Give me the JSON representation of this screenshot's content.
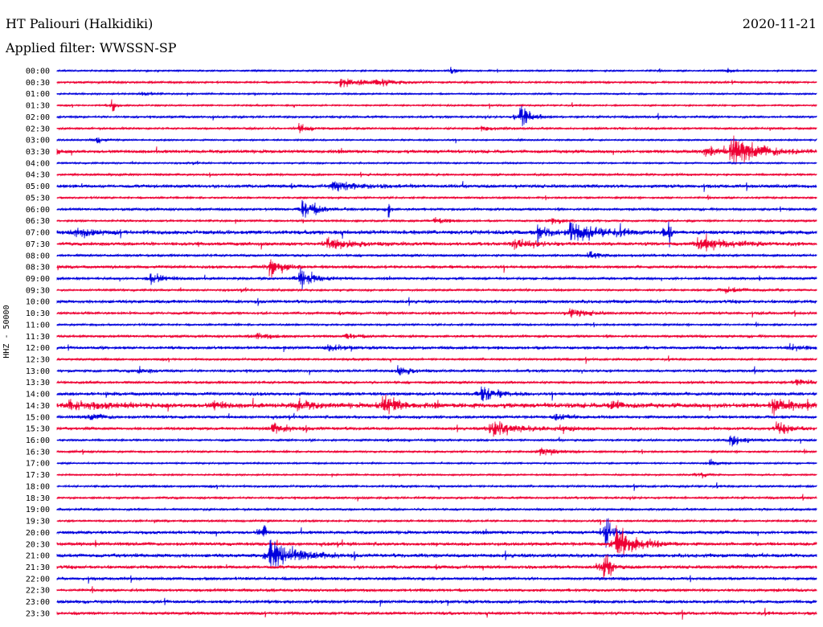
{
  "header": {
    "station": "HT Paliouri (Halkidiki)",
    "date": "2020-11-21",
    "filter": "Applied filter: WWSSN-SP"
  },
  "y_axis_label": "HHZ - 50000",
  "colors": {
    "even_trace": "#0000dd",
    "odd_trace": "#ee0033",
    "text": "#000000",
    "background": "#ffffff"
  },
  "chart_data": {
    "type": "line",
    "title": "",
    "ylabel": "HHZ - 50000",
    "row_labels": [
      "00:00",
      "00:30",
      "01:00",
      "01:30",
      "02:00",
      "02:30",
      "03:00",
      "03:30",
      "04:00",
      "04:30",
      "05:00",
      "05:30",
      "06:00",
      "06:30",
      "07:00",
      "07:30",
      "08:00",
      "08:30",
      "09:00",
      "09:30",
      "10:00",
      "10:30",
      "11:00",
      "11:30",
      "12:00",
      "12:30",
      "13:00",
      "13:30",
      "14:00",
      "14:30",
      "15:00",
      "15:30",
      "16:00",
      "16:30",
      "17:00",
      "17:30",
      "18:00",
      "18:30",
      "19:00",
      "19:30",
      "20:00",
      "20:30",
      "21:00",
      "21:30",
      "22:00",
      "22:30",
      "23:00",
      "23:30"
    ],
    "trace_minutes": 30,
    "noise": [
      0.8,
      1.0,
      0.8,
      0.8,
      1.0,
      1.0,
      0.8,
      1.6,
      0.8,
      1.0,
      1.6,
      1.0,
      1.2,
      1.0,
      2.0,
      1.6,
      1.2,
      1.4,
      1.2,
      1.0,
      1.6,
      1.2,
      1.0,
      1.2,
      1.4,
      1.0,
      1.2,
      1.2,
      1.6,
      2.4,
      1.4,
      1.4,
      1.0,
      1.0,
      0.8,
      0.8,
      1.0,
      1.0,
      1.0,
      1.0,
      1.6,
      1.6,
      1.8,
      1.6,
      1.4,
      1.4,
      1.6,
      1.4
    ],
    "events": [
      {
        "row": 0,
        "minute": 15.6,
        "amplitude": 3,
        "duration": 0.3
      },
      {
        "row": 0,
        "minute": 26.5,
        "amplitude": 3,
        "duration": 0.3
      },
      {
        "row": 1,
        "minute": 11.2,
        "amplitude": 4,
        "duration": 1.5
      },
      {
        "row": 1,
        "minute": 12.7,
        "amplitude": 4,
        "duration": 0.8
      },
      {
        "row": 2,
        "minute": 3.4,
        "amplitude": 2,
        "duration": 0.5
      },
      {
        "row": 3,
        "minute": 2.2,
        "amplitude": 6,
        "duration": 0.2
      },
      {
        "row": 4,
        "minute": 18.3,
        "amplitude": 12,
        "duration": 0.6
      },
      {
        "row": 5,
        "minute": 9.6,
        "amplitude": 4,
        "duration": 0.6
      },
      {
        "row": 5,
        "minute": 16.8,
        "amplitude": 2,
        "duration": 1.0
      },
      {
        "row": 6,
        "minute": 1.6,
        "amplitude": 3,
        "duration": 0.4
      },
      {
        "row": 7,
        "minute": 0.0,
        "amplitude": 5,
        "duration": 0.15
      },
      {
        "row": 7,
        "minute": 26.6,
        "amplitude": 12,
        "duration": 1.8
      },
      {
        "row": 7,
        "minute": 25.6,
        "amplitude": 3,
        "duration": 1.0
      },
      {
        "row": 10,
        "minute": 10.9,
        "amplitude": 4,
        "duration": 1.6
      },
      {
        "row": 12,
        "minute": 9.7,
        "amplitude": 9,
        "duration": 0.9
      },
      {
        "row": 12,
        "minute": 13.1,
        "amplitude": 8,
        "duration": 0.1
      },
      {
        "row": 13,
        "minute": 14.9,
        "amplitude": 3,
        "duration": 0.6
      },
      {
        "row": 13,
        "minute": 19.6,
        "amplitude": 3,
        "duration": 0.6
      },
      {
        "row": 14,
        "minute": 0.8,
        "amplitude": 5,
        "duration": 0.8
      },
      {
        "row": 14,
        "minute": 19.0,
        "amplitude": 4,
        "duration": 0.8
      },
      {
        "row": 14,
        "minute": 20.3,
        "amplitude": 8,
        "duration": 1.8
      },
      {
        "row": 14,
        "minute": 24.2,
        "amplitude": 12,
        "duration": 0.1
      },
      {
        "row": 15,
        "minute": 10.7,
        "amplitude": 5,
        "duration": 1.5
      },
      {
        "row": 15,
        "minute": 18.0,
        "amplitude": 4,
        "duration": 1.2
      },
      {
        "row": 15,
        "minute": 25.3,
        "amplitude": 5,
        "duration": 2.0
      },
      {
        "row": 16,
        "minute": 21.0,
        "amplitude": 3,
        "duration": 0.8
      },
      {
        "row": 17,
        "minute": 8.4,
        "amplitude": 10,
        "duration": 0.7
      },
      {
        "row": 18,
        "minute": 3.7,
        "amplitude": 6,
        "duration": 0.8
      },
      {
        "row": 18,
        "minute": 9.6,
        "amplitude": 7,
        "duration": 1.0
      },
      {
        "row": 19,
        "minute": 26.4,
        "amplitude": 3,
        "duration": 1.0
      },
      {
        "row": 21,
        "minute": 20.3,
        "amplitude": 4,
        "duration": 1.0
      },
      {
        "row": 23,
        "minute": 7.9,
        "amplitude": 3,
        "duration": 0.8
      },
      {
        "row": 23,
        "minute": 11.4,
        "amplitude": 3,
        "duration": 0.6
      },
      {
        "row": 24,
        "minute": 10.7,
        "amplitude": 3,
        "duration": 0.8
      },
      {
        "row": 24,
        "minute": 29.0,
        "amplitude": 3,
        "duration": 0.8
      },
      {
        "row": 26,
        "minute": 3.2,
        "amplitude": 3,
        "duration": 0.6
      },
      {
        "row": 26,
        "minute": 13.5,
        "amplitude": 4,
        "duration": 0.8
      },
      {
        "row": 27,
        "minute": 29.2,
        "amplitude": 3,
        "duration": 0.8
      },
      {
        "row": 28,
        "minute": 16.8,
        "amplitude": 8,
        "duration": 0.8
      },
      {
        "row": 29,
        "minute": 0.5,
        "amplitude": 4,
        "duration": 1.8
      },
      {
        "row": 29,
        "minute": 6.2,
        "amplitude": 4,
        "duration": 0.5
      },
      {
        "row": 29,
        "minute": 9.5,
        "amplitude": 5,
        "duration": 0.8
      },
      {
        "row": 29,
        "minute": 12.9,
        "amplitude": 8,
        "duration": 1.0
      },
      {
        "row": 29,
        "minute": 21.9,
        "amplitude": 5,
        "duration": 0.6
      },
      {
        "row": 29,
        "minute": 28.3,
        "amplitude": 6,
        "duration": 1.0
      },
      {
        "row": 30,
        "minute": 1.3,
        "amplitude": 3,
        "duration": 0.8
      },
      {
        "row": 30,
        "minute": 19.7,
        "amplitude": 3,
        "duration": 0.8
      },
      {
        "row": 31,
        "minute": 8.5,
        "amplitude": 4,
        "duration": 1.2
      },
      {
        "row": 31,
        "minute": 17.1,
        "amplitude": 8,
        "duration": 1.4
      },
      {
        "row": 31,
        "minute": 19.9,
        "amplitude": 3,
        "duration": 0.8
      },
      {
        "row": 31,
        "minute": 28.4,
        "amplitude": 4,
        "duration": 1.2
      },
      {
        "row": 32,
        "minute": 26.6,
        "amplitude": 6,
        "duration": 0.8
      },
      {
        "row": 33,
        "minute": 19.1,
        "amplitude": 4,
        "duration": 0.8
      },
      {
        "row": 34,
        "minute": 25.8,
        "amplitude": 3,
        "duration": 0.5
      },
      {
        "row": 35,
        "minute": 25.4,
        "amplitude": 3,
        "duration": 0.4
      },
      {
        "row": 40,
        "minute": 8.2,
        "amplitude": 14,
        "duration": 0.1
      },
      {
        "row": 40,
        "minute": 21.7,
        "amplitude": 18,
        "duration": 0.3
      },
      {
        "row": 41,
        "minute": 22.1,
        "amplitude": 14,
        "duration": 1.2
      },
      {
        "row": 42,
        "minute": 8.4,
        "amplitude": 12,
        "duration": 1.6
      },
      {
        "row": 43,
        "minute": 21.6,
        "amplitude": 14,
        "duration": 0.4
      }
    ]
  }
}
